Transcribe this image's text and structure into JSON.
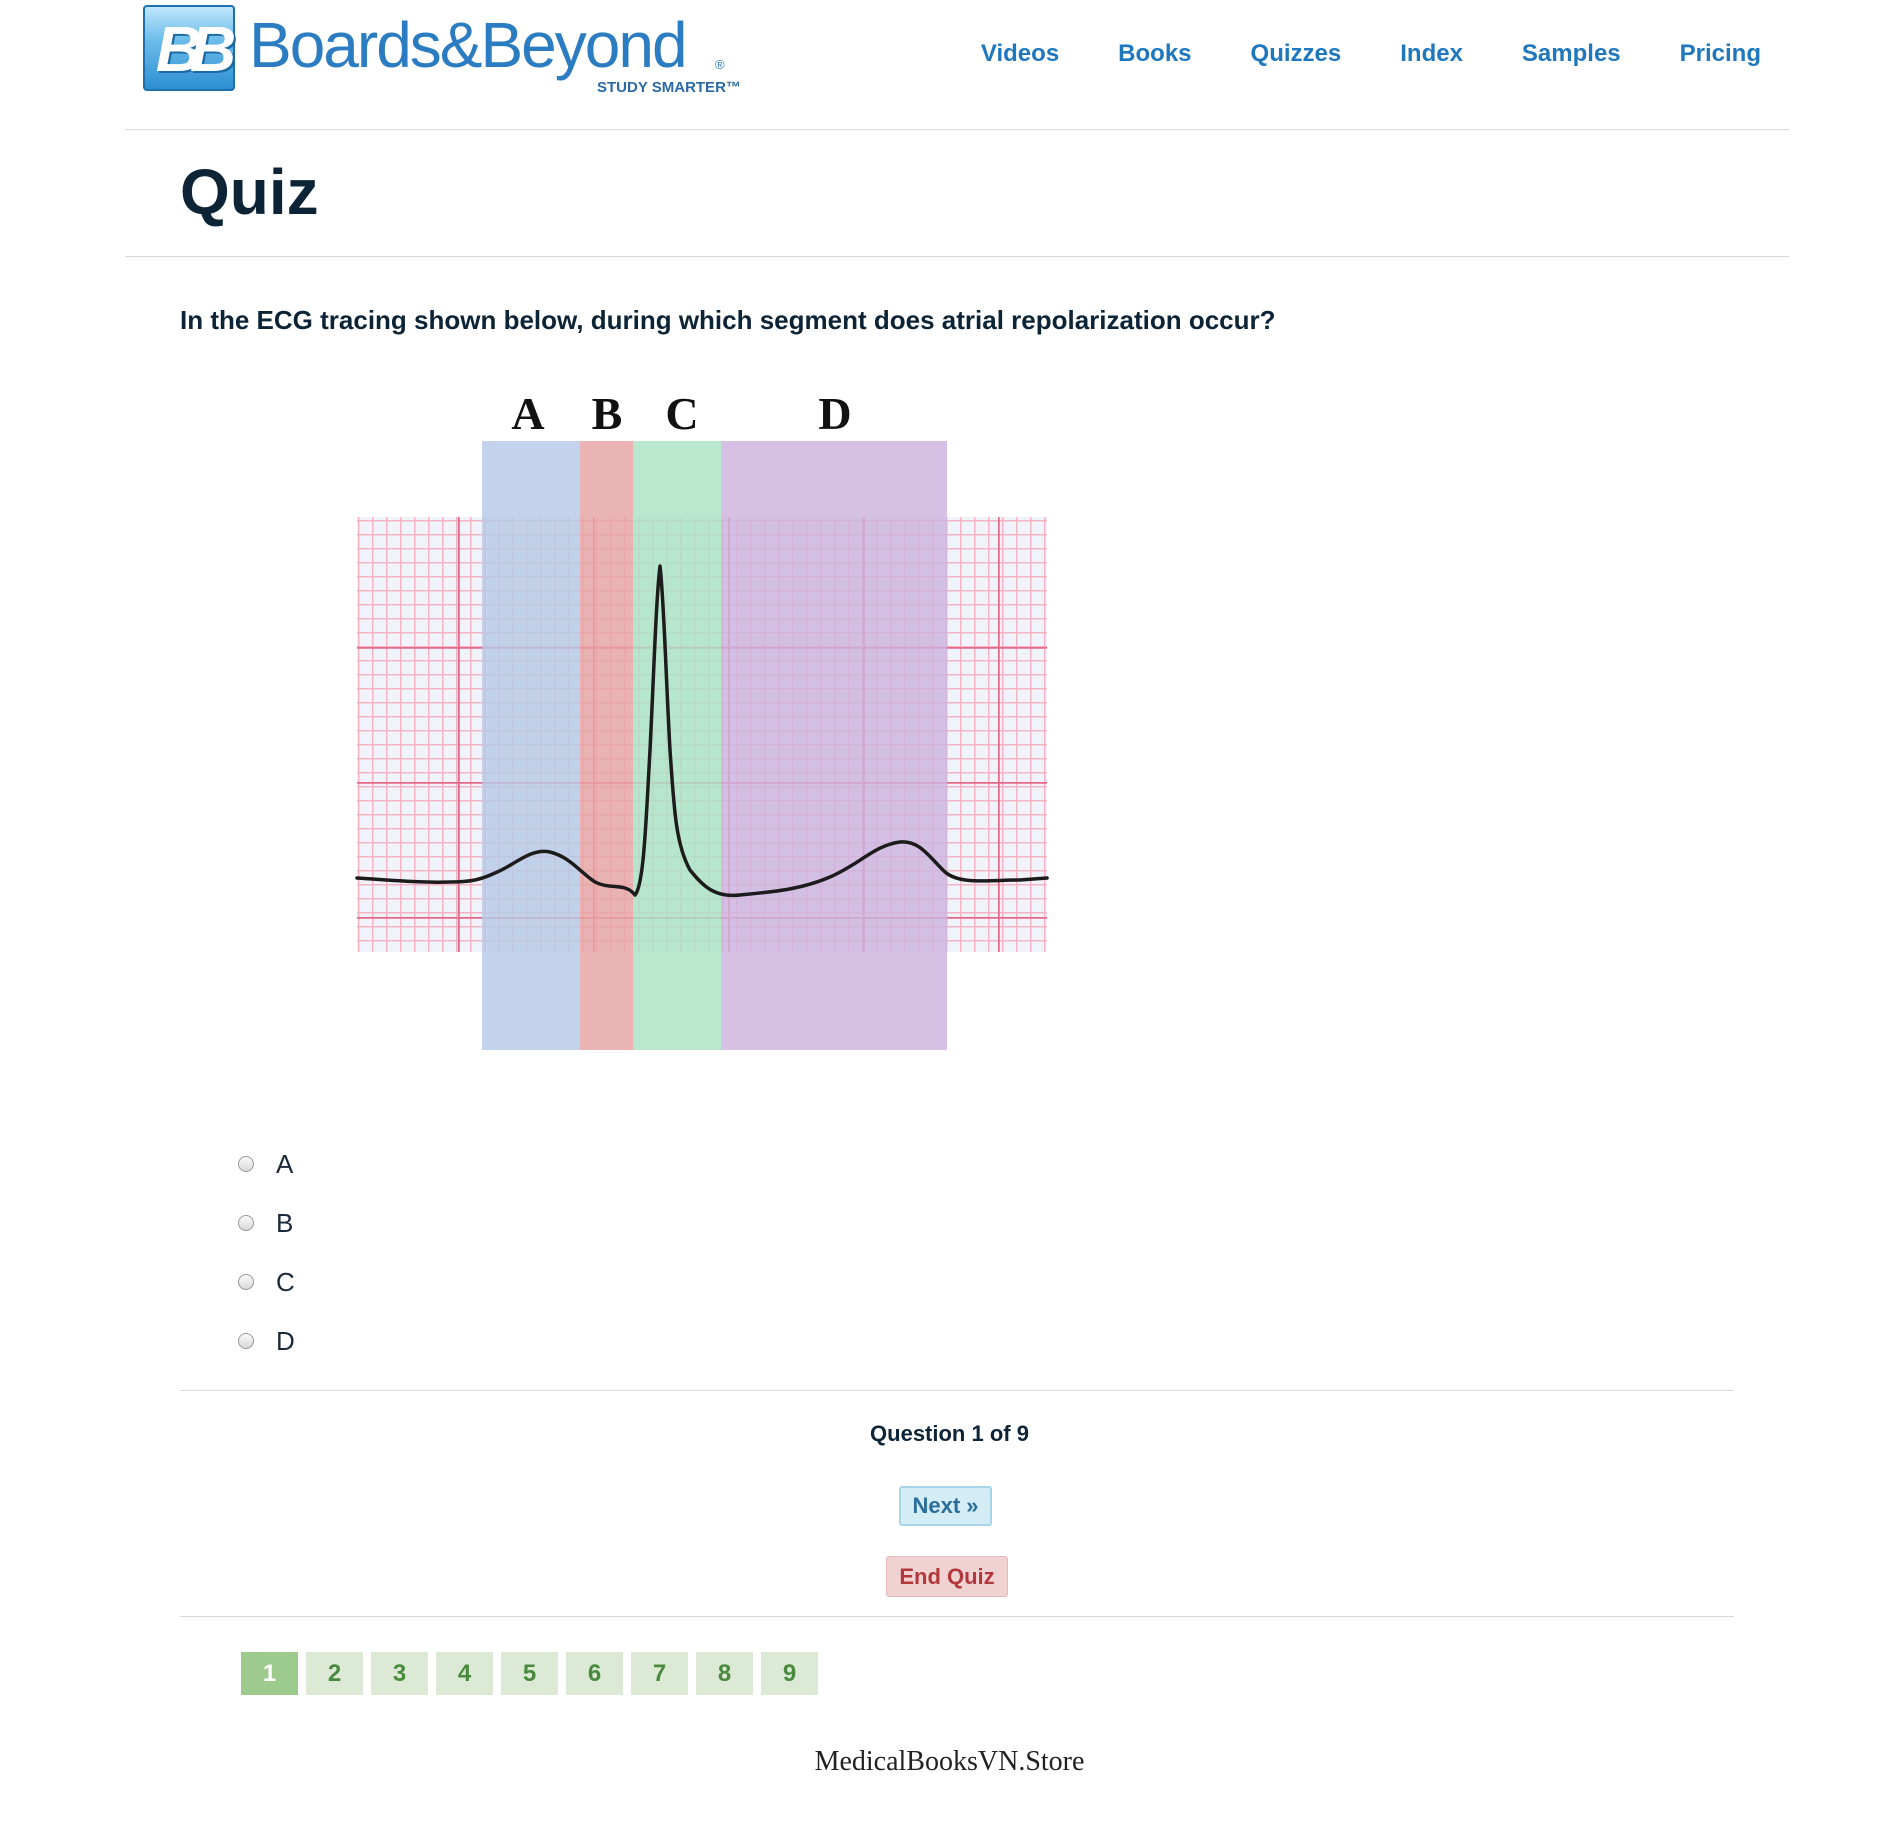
{
  "header": {
    "logo_mark": "BB",
    "logo_text": "Boards&Beyond",
    "logo_registered": "®",
    "logo_tagline": "STUDY SMARTER™",
    "nav": [
      "Videos",
      "Books",
      "Quizzes",
      "Index",
      "Samples",
      "Pricing"
    ],
    "link_color": "#1f77bd"
  },
  "page_title": "Quiz",
  "question": {
    "text": "In the ECG tracing shown below, during which segment does atrial repolarization occur?",
    "figure": {
      "segment_labels": [
        "A",
        "B",
        "C",
        "D"
      ],
      "segment_colors": [
        "#b6c9e6",
        "#e6a3a3",
        "#a9e3c4",
        "#cdb3df"
      ]
    },
    "options": [
      "A",
      "B",
      "C",
      "D"
    ],
    "counter": "Question 1 of 9"
  },
  "buttons": {
    "next": "Next »",
    "end": "End Quiz"
  },
  "pagination": {
    "pages": [
      "1",
      "2",
      "3",
      "4",
      "5",
      "6",
      "7",
      "8",
      "9"
    ],
    "current": "1"
  },
  "watermark": "MedicalBooksVN.Store"
}
